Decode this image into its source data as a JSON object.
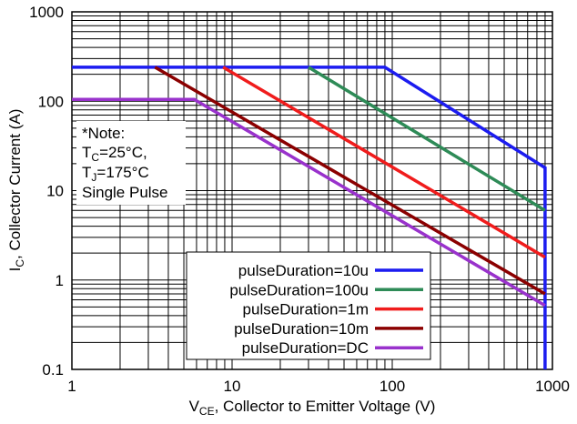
{
  "chart_data": {
    "type": "line",
    "xscale": "log",
    "yscale": "log",
    "xlim": [
      1,
      1000
    ],
    "ylim": [
      0.1,
      1000
    ],
    "grid": true,
    "xlabel": {
      "main": "V",
      "sub": "CE",
      "rest": ", Collector to Emitter Voltage (V)"
    },
    "ylabel": {
      "main": "I",
      "sub": "C",
      "rest": ", Collector Current (A)"
    },
    "xticks": [
      {
        "value": 1,
        "label": "1"
      },
      {
        "value": 10,
        "label": "10"
      },
      {
        "value": 100,
        "label": "100"
      },
      {
        "value": 1000,
        "label": "1000"
      }
    ],
    "yticks": [
      {
        "value": 0.1,
        "label": "0.1"
      },
      {
        "value": 1,
        "label": "1"
      },
      {
        "value": 10,
        "label": "10"
      },
      {
        "value": 100,
        "label": "100"
      },
      {
        "value": 1000,
        "label": "1000"
      }
    ],
    "legend_position": "bottom-right",
    "note": {
      "line1": "*Note:",
      "line2": {
        "main": "T",
        "sub": "C",
        "rest": "=25°C,"
      },
      "line3": {
        "main": "T",
        "sub": "J",
        "rest": "=175°C"
      },
      "line4": "Single Pulse"
    },
    "series": [
      {
        "name": "pulseDuration=10u",
        "color": "#1c1cf0",
        "points": [
          [
            1,
            240
          ],
          [
            90,
            240
          ],
          [
            900,
            18
          ],
          [
            900,
            0.1
          ]
        ]
      },
      {
        "name": "pulseDuration=100u",
        "color": "#2e8b57",
        "points": [
          [
            30,
            240
          ],
          [
            900,
            6
          ]
        ]
      },
      {
        "name": "pulseDuration=1m",
        "color": "#f01c1c",
        "points": [
          [
            8.8,
            240
          ],
          [
            900,
            1.8
          ]
        ]
      },
      {
        "name": "pulseDuration=10m",
        "color": "#8b0000",
        "points": [
          [
            3.3,
            240
          ],
          [
            900,
            0.7
          ]
        ]
      },
      {
        "name": "pulseDuration=DC",
        "color": "#9932cc",
        "points": [
          [
            1,
            105
          ],
          [
            5.8,
            105
          ],
          [
            900,
            0.52
          ]
        ]
      }
    ]
  }
}
